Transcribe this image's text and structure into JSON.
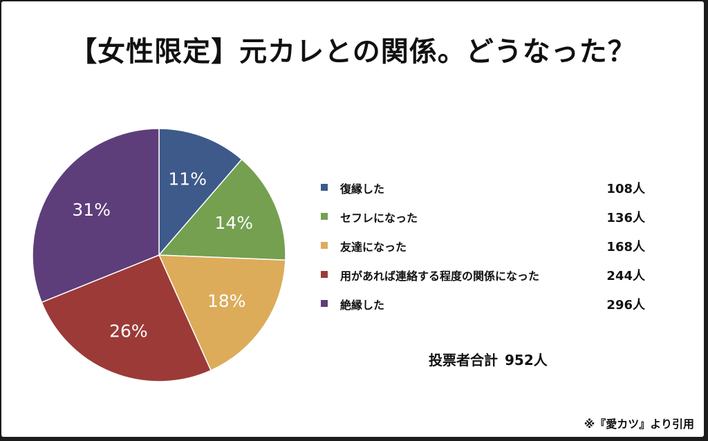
{
  "title": "【女性限定】元カレとの関係。どうなった？",
  "chart_data": {
    "type": "pie",
    "title": "【女性限定】元カレとの関係。どうなった？",
    "slices": [
      {
        "label": "復縁した",
        "count": 108,
        "count_label": "108人",
        "percent": 11,
        "percent_label": "11%",
        "color": "#3d5a8a"
      },
      {
        "label": "セフレになった",
        "count": 136,
        "count_label": "136人",
        "percent": 14,
        "percent_label": "14%",
        "color": "#74a050"
      },
      {
        "label": "友達になった",
        "count": 168,
        "count_label": "168人",
        "percent": 18,
        "percent_label": "18%",
        "color": "#dcac5a"
      },
      {
        "label": "用があれば連絡する程度の関係になった",
        "count": 244,
        "count_label": "244人",
        "percent": 26,
        "percent_label": "26%",
        "color": "#9c3a38"
      },
      {
        "label": "絶縁した",
        "count": 296,
        "count_label": "296人",
        "percent": 31,
        "percent_label": "31%",
        "color": "#5e3e7a"
      }
    ],
    "legend_position": "right"
  },
  "total": {
    "label": "投票者合計",
    "value": "952人"
  },
  "source": "※『愛カツ』より引用"
}
